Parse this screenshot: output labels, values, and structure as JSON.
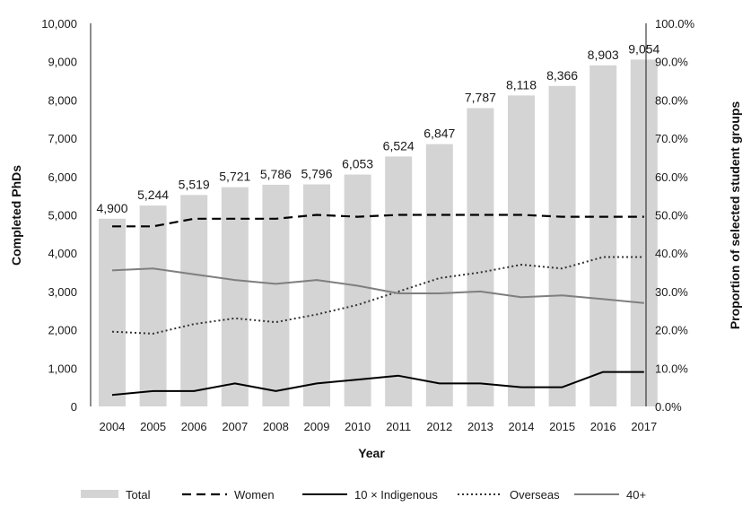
{
  "chart_data": {
    "type": "bar",
    "title": "",
    "xlabel": "Year",
    "ylabel": "Completed PhDs",
    "y2label": "Proportion of selected student groups",
    "ylim": [
      0,
      10000
    ],
    "y2lim": [
      0,
      100
    ],
    "y_ticks": [
      "0",
      "1,000",
      "2,000",
      "3,000",
      "4,000",
      "5,000",
      "6,000",
      "7,000",
      "8,000",
      "9,000",
      "10,000"
    ],
    "y2_ticks": [
      "0.0%",
      "10.0%",
      "20.0%",
      "30.0%",
      "40.0%",
      "50.0%",
      "60.0%",
      "70.0%",
      "80.0%",
      "90.0%",
      "100.0%"
    ],
    "categories": [
      "2004",
      "2005",
      "2006",
      "2007",
      "2008",
      "2009",
      "2010",
      "2011",
      "2012",
      "2013",
      "2014",
      "2015",
      "2016",
      "2017"
    ],
    "legend_position": "bottom",
    "grid": false,
    "bars": {
      "name": "Total",
      "values": [
        4900,
        5244,
        5519,
        5721,
        5786,
        5796,
        6053,
        6524,
        6847,
        7787,
        8118,
        8366,
        8903,
        9054
      ],
      "labels": [
        "4,900",
        "5,244",
        "5,519",
        "5,721",
        "5,786",
        "5,796",
        "6,053",
        "6,524",
        "6,847",
        "7,787",
        "8,118",
        "8,366",
        "8,903",
        "9,054"
      ],
      "color": "#d4d4d4"
    },
    "series": [
      {
        "name": "Women",
        "axis": "right",
        "style": "dashed",
        "color": "#000000",
        "values": [
          47,
          47,
          49,
          49,
          49,
          50,
          49.5,
          50,
          50,
          50,
          50,
          49.5,
          49.5,
          49.5
        ]
      },
      {
        "name": "10 × Indigenous",
        "axis": "right",
        "style": "solid",
        "color": "#000000",
        "values": [
          3,
          4,
          4,
          6,
          4,
          6,
          7,
          8,
          6,
          6,
          5,
          5,
          9,
          9
        ]
      },
      {
        "name": "Overseas",
        "axis": "right",
        "style": "dotted",
        "color": "#333333",
        "values": [
          19.5,
          19,
          21.5,
          23,
          22,
          24,
          26.5,
          30,
          33.5,
          35,
          37,
          36,
          39,
          39
        ]
      },
      {
        "name": "40+",
        "axis": "right",
        "style": "solid-gray",
        "color": "#7f7f7f",
        "values": [
          35.5,
          36,
          34.5,
          33,
          32,
          33,
          31.5,
          29.5,
          29.5,
          30,
          28.5,
          29,
          28,
          27
        ]
      }
    ]
  }
}
